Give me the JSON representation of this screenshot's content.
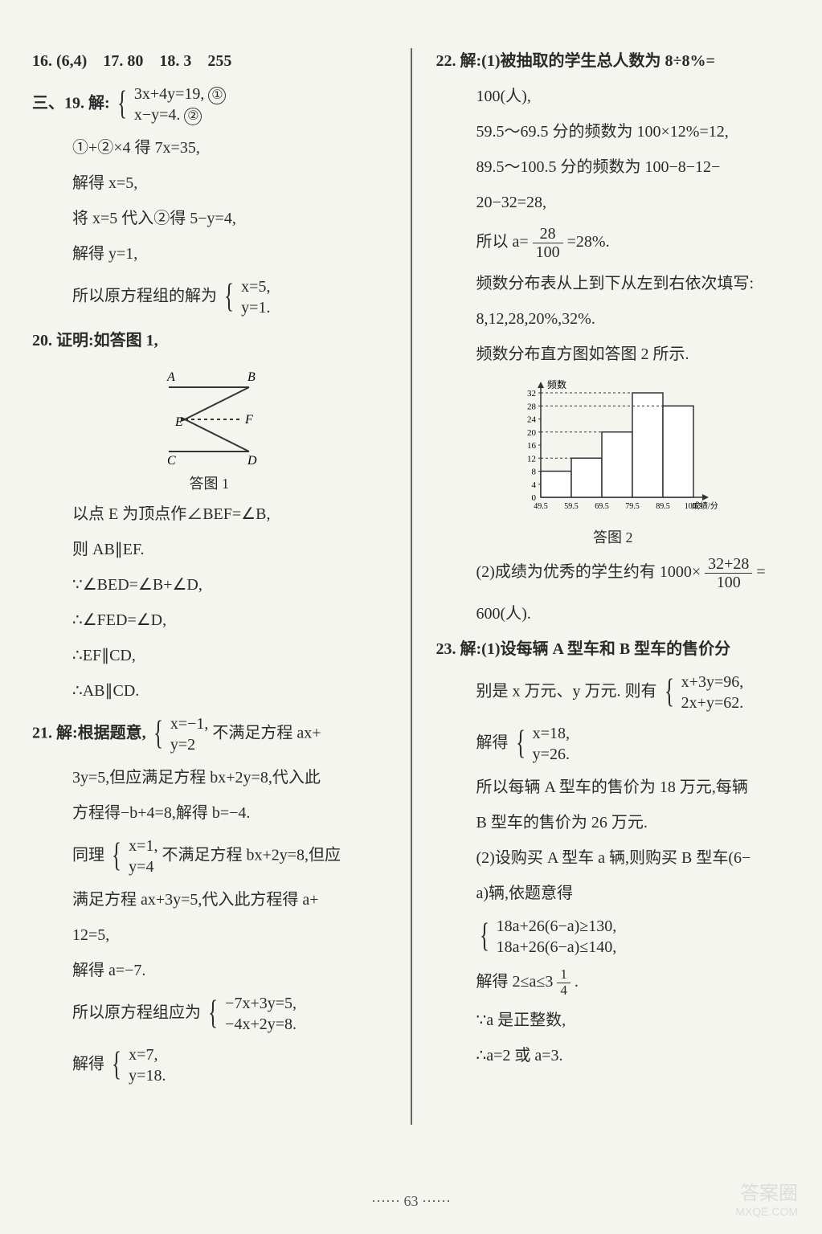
{
  "page_number": "63",
  "left": {
    "l16_18": "16. (6,4)　17. 80　18. 3　255",
    "l19_prefix": "三、19. 解:",
    "l19_eq1": "3x+4y=19,",
    "l19_eq2": "x−y=4.",
    "l19_c1": "①",
    "l19_c2": "②",
    "l19_s1": "①+②×4 得 7x=35,",
    "l19_s2": "解得 x=5,",
    "l19_s3": "将 x=5 代入②得 5−y=4,",
    "l19_s4": "解得 y=1,",
    "l19_s5_prefix": "所以原方程组的解为",
    "l19_s5_e1": "x=5,",
    "l19_s5_e2": "y=1.",
    "l20_h": "20. 证明:如答图 1,",
    "fig1_caption": "答图 1",
    "fig1": {
      "A": "A",
      "B": "B",
      "C": "C",
      "D": "D",
      "E": "E",
      "F": "F"
    },
    "l20_s1": "以点 E 为顶点作∠BEF=∠B,",
    "l20_s2": "则 AB∥EF.",
    "l20_s3": "∵∠BED=∠B+∠D,",
    "l20_s4": "∴∠FED=∠D,",
    "l20_s5": "∴EF∥CD,",
    "l20_s6": "∴AB∥CD.",
    "l21_prefix": "21. 解:根据题意,",
    "l21_e1": "x=−1,",
    "l21_e2": "y=2",
    "l21_t1": "不满足方程 ax+",
    "l21_s2": "3y=5,但应满足方程 bx+2y=8,代入此",
    "l21_s3": "方程得−b+4=8,解得 b=−4.",
    "l21_s4_prefix": "同理",
    "l21_s4_e1": "x=1,",
    "l21_s4_e2": "y=4",
    "l21_s4_t": "不满足方程 bx+2y=8,但应",
    "l21_s5": "满足方程 ax+3y=5,代入此方程得 a+",
    "l21_s6": "12=5,",
    "l21_s7": "解得 a=−7.",
    "l21_s8_prefix": "所以原方程组应为",
    "l21_s8_e1": "−7x+3y=5,",
    "l21_s8_e2": "−4x+2y=8.",
    "l21_s9_prefix": "解得",
    "l21_s9_e1": "x=7,",
    "l21_s9_e2": "y=18."
  },
  "right": {
    "l22_s1": "22. 解:(1)被抽取的学生总人数为 8÷8%=",
    "l22_s2": "100(人),",
    "l22_s3": "59.5～69.5 分的频数为 100×12%=12,",
    "l22_s4": "89.5～100.5 分的频数为 100−8−12−",
    "l22_s5": "20−32=28,",
    "l22_s6_prefix": "所以 a=",
    "l22_s6_top": "28",
    "l22_s6_bot": "100",
    "l22_s6_suffix": "=28%.",
    "l22_s7": "频数分布表从上到下从左到右依次填写:",
    "l22_s8": "8,12,28,20%,32%.",
    "l22_s9": "频数分布直方图如答图 2 所示.",
    "fig2_caption": "答图 2",
    "fig2": {
      "ylabel": "频数",
      "xlabel": "成绩/分",
      "yticks": [
        "0",
        "4",
        "8",
        "12",
        "16",
        "20",
        "24",
        "28",
        "32"
      ],
      "xticks": [
        "49.5",
        "59.5",
        "69.5",
        "79.5",
        "89.5",
        "100.5"
      ],
      "values": [
        8,
        12,
        20,
        32,
        28
      ],
      "bar_color": "#ffffff",
      "bar_border": "#333333",
      "axis_color": "#333333"
    },
    "l22b_prefix": "(2)成绩为优秀的学生约有 1000×",
    "l22b_top": "32+28",
    "l22b_bot": "100",
    "l22b_suffix": "=",
    "l22b_s2": "600(人).",
    "l23_s1": "23. 解:(1)设每辆 A 型车和 B 型车的售价分",
    "l23_s2_prefix": "别是 x 万元、y 万元. 则有",
    "l23_s2_e1": "x+3y=96,",
    "l23_s2_e2": "2x+y=62.",
    "l23_s3_prefix": "解得",
    "l23_s3_e1": "x=18,",
    "l23_s3_e2": "y=26.",
    "l23_s4": "所以每辆 A 型车的售价为 18 万元,每辆",
    "l23_s5": "B 型车的售价为 26 万元.",
    "l23_s6": "(2)设购买 A 型车 a 辆,则购买 B 型车(6−",
    "l23_s7": "a)辆,依题意得",
    "l23_s8_e1": "18a+26(6−a)≥130,",
    "l23_s8_e2": "18a+26(6−a)≤140,",
    "l23_s9_prefix": "解得 2≤a≤3",
    "l23_s9_top": "1",
    "l23_s9_bot": "4",
    "l23_s9_suffix": ".",
    "l23_s10": "∵a 是正整数,",
    "l23_s11": "∴a=2 或 a=3."
  },
  "watermark": {
    "main": "答案圈",
    "sub": "MXQE.COM"
  }
}
